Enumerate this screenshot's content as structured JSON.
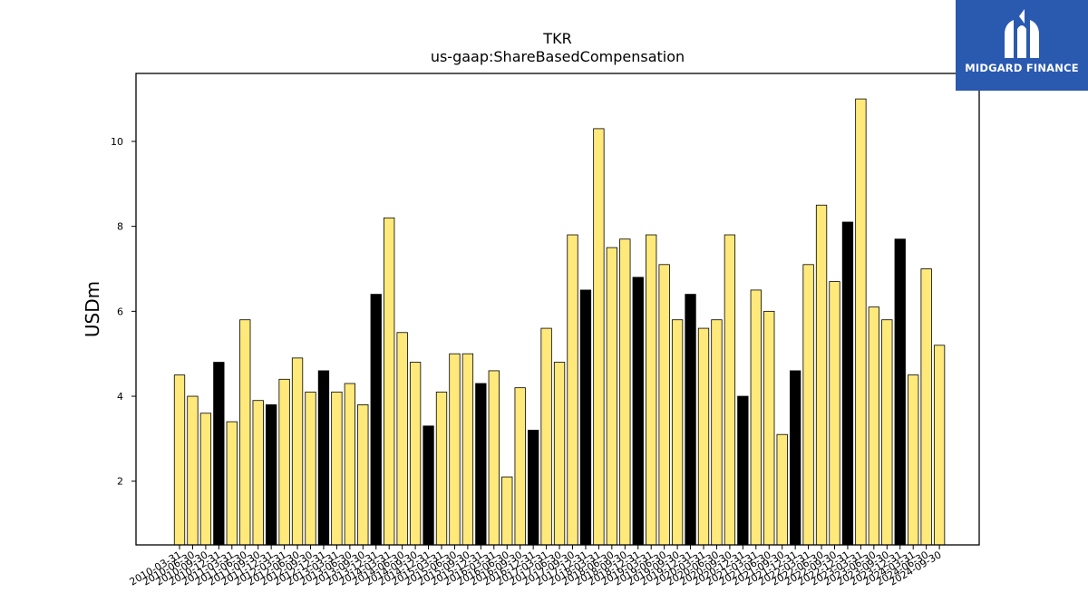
{
  "chart_data": {
    "type": "bar",
    "title": "TKR",
    "subtitle": "us-gaap:ShareBasedCompensation",
    "xlabel": "",
    "ylabel": "USDm",
    "ylim": [
      0.5,
      11.6
    ],
    "yticks": [
      2,
      4,
      6,
      8,
      10
    ],
    "grid": false,
    "highlight_color": "#000000",
    "bar_color": "#ffe97a",
    "categories": [
      "2010-03-31",
      "2010-06-30",
      "2010-09-30",
      "2010-12-31",
      "2011-03-31",
      "2011-06-30",
      "2011-09-30",
      "2011-12-31",
      "2012-03-31",
      "2012-06-30",
      "2012-09-30",
      "2012-12-31",
      "2013-03-31",
      "2013-06-30",
      "2013-09-30",
      "2013-12-31",
      "2014-03-31",
      "2014-06-30",
      "2014-09-30",
      "2014-12-31",
      "2015-03-31",
      "2015-06-30",
      "2015-09-30",
      "2015-12-31",
      "2016-03-31",
      "2016-06-30",
      "2016-09-30",
      "2016-12-31",
      "2017-03-31",
      "2017-06-30",
      "2017-09-30",
      "2017-12-31",
      "2018-03-31",
      "2018-06-30",
      "2018-09-30",
      "2018-12-31",
      "2019-03-31",
      "2019-06-30",
      "2019-09-30",
      "2019-12-31",
      "2020-03-31",
      "2020-06-30",
      "2020-09-30",
      "2020-12-31",
      "2021-03-31",
      "2021-06-30",
      "2021-09-30",
      "2021-12-31",
      "2022-03-31",
      "2022-06-30",
      "2022-09-30",
      "2022-12-31",
      "2023-03-31",
      "2023-06-30",
      "2023-09-30",
      "2023-12-31",
      "2024-03-31",
      "2024-06-30",
      "2024-09-30"
    ],
    "values": [
      4.5,
      4.0,
      3.6,
      4.8,
      3.4,
      5.8,
      3.9,
      3.8,
      4.4,
      4.9,
      4.1,
      4.6,
      4.1,
      4.3,
      3.8,
      6.4,
      8.2,
      5.5,
      4.8,
      3.3,
      4.1,
      5.0,
      5.0,
      4.3,
      4.6,
      2.1,
      4.2,
      3.2,
      5.6,
      4.8,
      7.8,
      6.5,
      10.3,
      7.5,
      7.7,
      6.8,
      7.8,
      7.1,
      5.8,
      6.4,
      5.6,
      5.8,
      7.8,
      4.0,
      6.5,
      6.0,
      3.1,
      4.6,
      7.1,
      8.5,
      6.7,
      8.1,
      11.0,
      6.1,
      5.8,
      7.7,
      4.5,
      7.0,
      5.2
    ],
    "highlighted": [
      false,
      false,
      false,
      true,
      false,
      false,
      false,
      true,
      false,
      false,
      false,
      true,
      false,
      false,
      false,
      true,
      false,
      false,
      false,
      true,
      false,
      false,
      false,
      true,
      false,
      false,
      false,
      true,
      false,
      false,
      false,
      true,
      false,
      false,
      false,
      true,
      false,
      false,
      false,
      true,
      false,
      false,
      false,
      true,
      false,
      false,
      false,
      true,
      false,
      false,
      false,
      true,
      false,
      false,
      false,
      true,
      false,
      false,
      false
    ]
  },
  "logo": {
    "text": "MIDGARD FINANCE",
    "background": "#2a59b0",
    "icon": "midgard-logo-icon"
  }
}
